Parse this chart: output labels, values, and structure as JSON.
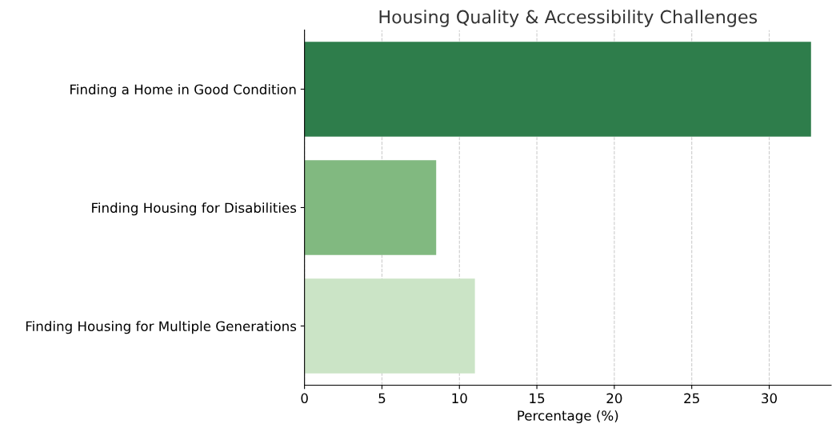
{
  "chart_data": {
    "type": "bar",
    "orientation": "horizontal",
    "title": "Housing Quality & Accessibility Challenges",
    "xlabel": "Percentage (%)",
    "categories": [
      "Finding a Home in Good Condition",
      "Finding Housing for Disabilities",
      "Finding Housing for Multiple Generations"
    ],
    "values": [
      32.7,
      8.5,
      11.0
    ],
    "colors": [
      "#2e7d4b",
      "#81b980",
      "#cbe4c6"
    ],
    "xlim": [
      0,
      34.0
    ],
    "xticks": [
      0,
      5,
      10,
      15,
      20,
      25,
      30
    ],
    "grid": "x"
  }
}
